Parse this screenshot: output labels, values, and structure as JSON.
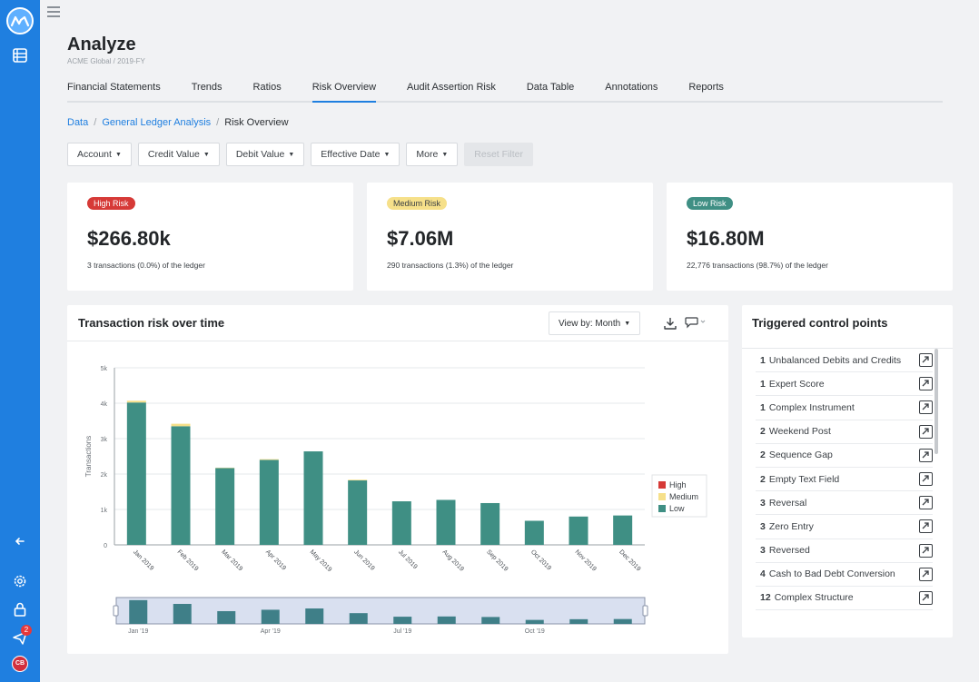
{
  "sidebar": {
    "notification_count": "2",
    "avatar_initials": "CB",
    "colors": {
      "background": "#1f7fe0",
      "badge": "#e5383b",
      "avatar": "#d22f3d"
    }
  },
  "header": {
    "title": "Analyze",
    "subtitle": "ACME Global / 2019-FY"
  },
  "tabs": [
    {
      "label": "Financial Statements"
    },
    {
      "label": "Trends"
    },
    {
      "label": "Ratios"
    },
    {
      "label": "Risk Overview",
      "active": true
    },
    {
      "label": "Audit Assertion Risk"
    },
    {
      "label": "Data Table"
    },
    {
      "label": "Annotations"
    },
    {
      "label": "Reports"
    }
  ],
  "breadcrumb": {
    "items": [
      "Data",
      "General Ledger Analysis"
    ],
    "separator": "/",
    "current": "Risk Overview"
  },
  "filters": {
    "account": "Account",
    "credit_value": "Credit Value",
    "debit_value": "Debit Value",
    "effective_date": "Effective Date",
    "more": "More",
    "reset": "Reset Filter"
  },
  "risk_cards": {
    "high": {
      "badge": "High Risk",
      "amount": "$266.80k",
      "note": "3 transactions (0.0%) of the ledger",
      "color": "#d63a37"
    },
    "medium": {
      "badge": "Medium Risk",
      "amount": "$7.06M",
      "note": "290 transactions (1.3%) of the ledger",
      "color": "#f6e08a"
    },
    "low": {
      "badge": "Low Risk",
      "amount": "$16.80M",
      "note": "22,776 transactions (98.7%) of the ledger",
      "color": "#3f8f84"
    }
  },
  "chart_panel": {
    "title": "Transaction risk over time",
    "view_by": "View by: Month"
  },
  "chart_data": {
    "type": "bar",
    "stacked": true,
    "title": "Transaction risk over time",
    "xlabel": "",
    "ylabel": "Transactions",
    "ylim": [
      0,
      5000
    ],
    "yticks": [
      0,
      1000,
      2000,
      3000,
      4000,
      5000
    ],
    "ytick_labels": [
      "0",
      "1k",
      "2k",
      "3k",
      "4k",
      "5k"
    ],
    "categories": [
      "Jan 2019",
      "Feb 2019",
      "Mar 2019",
      "Apr 2019",
      "May 2019",
      "Jun 2019",
      "Jul 2019",
      "Aug 2019",
      "Sep 2019",
      "Oct 2019",
      "Nov 2019",
      "Dec 2019"
    ],
    "series": [
      {
        "name": "Low",
        "color": "#3f8f84",
        "values": [
          4020,
          3350,
          2170,
          2400,
          2640,
          1820,
          1230,
          1270,
          1180,
          680,
          800,
          830
        ]
      },
      {
        "name": "Medium",
        "color": "#f6e08a",
        "values": [
          50,
          70,
          10,
          20,
          0,
          20,
          0,
          0,
          0,
          0,
          0,
          0
        ]
      },
      {
        "name": "High",
        "color": "#d63a37",
        "values": [
          0,
          0,
          0,
          0,
          0,
          0,
          0,
          0,
          0,
          0,
          0,
          0
        ]
      }
    ],
    "legend": [
      "High",
      "Medium",
      "Low"
    ],
    "legend_position": "right",
    "grid": true,
    "navigator_labels": [
      "Jan '19",
      "Apr '19",
      "Jul '19",
      "Oct '19"
    ]
  },
  "control_points": {
    "title": "Triggered control points",
    "items": [
      {
        "count": "1",
        "label": "Unbalanced Debits and Credits"
      },
      {
        "count": "1",
        "label": "Expert Score"
      },
      {
        "count": "1",
        "label": "Complex Instrument"
      },
      {
        "count": "2",
        "label": "Weekend Post"
      },
      {
        "count": "2",
        "label": "Sequence Gap"
      },
      {
        "count": "2",
        "label": "Empty Text Field"
      },
      {
        "count": "3",
        "label": "Reversal"
      },
      {
        "count": "3",
        "label": "Zero Entry"
      },
      {
        "count": "3",
        "label": "Reversed"
      },
      {
        "count": "4",
        "label": "Cash to Bad Debt Conversion"
      },
      {
        "count": "12",
        "label": "Complex Structure"
      }
    ]
  }
}
